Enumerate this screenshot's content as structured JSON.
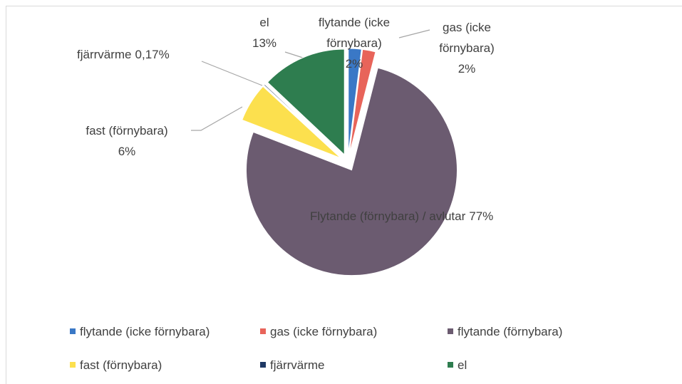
{
  "chart_data": {
    "type": "pie",
    "categories": [
      "flytande (icke förnybara)",
      "gas (icke förnybara)",
      "flytande (förnybara)",
      "fast (förnybara)",
      "fjärrvärme",
      "el"
    ],
    "values": [
      2,
      2,
      77,
      6,
      0.17,
      13
    ],
    "value_labels": [
      "2%",
      "2%",
      "77%",
      "6%",
      "0,17%",
      "13%"
    ],
    "data_label_names": [
      "flytande (icke förnybara)",
      "gas (icke förnybara)",
      "Flytande (förnybara) / avlutar",
      "fast (förnybara)",
      "fjärrvärme",
      "el"
    ],
    "colors": [
      "#3a78c6",
      "#e8645a",
      "#6b5b70",
      "#fce04e",
      "#1f3864",
      "#2e7d4f"
    ],
    "legend": "bottom"
  }
}
